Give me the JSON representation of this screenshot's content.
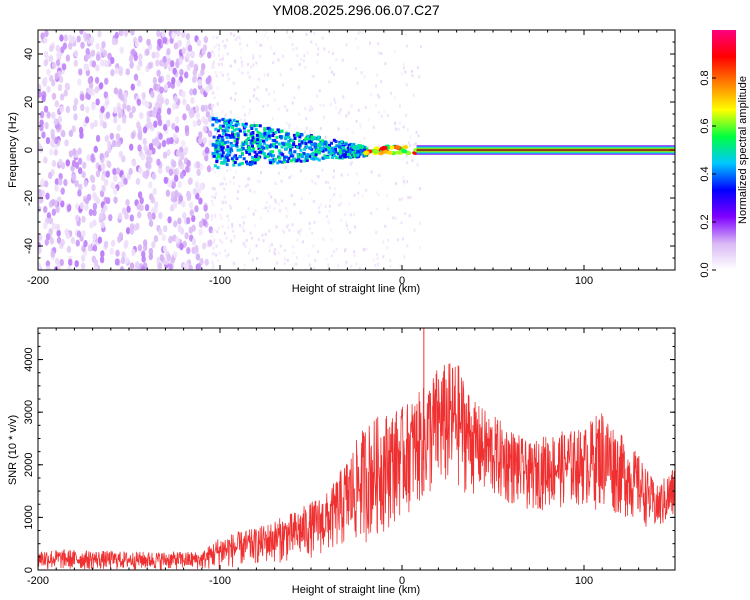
{
  "chart_data": [
    {
      "type": "heatmap",
      "title": "YM08.2025.296.06.07.C27",
      "xlabel": "Height of straight line (km)",
      "ylabel": "Frequency (Hz)",
      "xlim": [
        -200,
        150
      ],
      "ylim": [
        -50,
        50
      ],
      "xticks": [
        -200,
        -100,
        0,
        100
      ],
      "xtick_labels": [
        "-200",
        "-100",
        "0",
        "100"
      ],
      "yticks": [
        -40,
        -20,
        0,
        20,
        40
      ],
      "ytick_labels": [
        "-40",
        "-20",
        "0",
        "20",
        "40"
      ],
      "colorbar": {
        "label": "Normalized spectral amplitude",
        "range": [
          0,
          1
        ],
        "ticks": [
          0.0,
          0.2,
          0.4,
          0.6,
          0.8
        ],
        "tick_labels": [
          "0.0",
          "0.2",
          "0.4",
          "0.6",
          "0.8"
        ],
        "colors": [
          "#ffffff",
          "#d9b8f5",
          "#7f00ff",
          "#0000ff",
          "#00c8ff",
          "#00ff40",
          "#ffff00",
          "#ff8000",
          "#ff0000",
          "#ff0080"
        ]
      },
      "regions": [
        {
          "name": "noise-band",
          "x_range": [
            -200,
            -105
          ],
          "freq_range": [
            -50,
            50
          ],
          "amplitude": 0.12
        },
        {
          "name": "sparse-noise",
          "x_range": [
            -105,
            10
          ],
          "freq_range": [
            -50,
            50
          ],
          "amplitude": 0.04
        },
        {
          "name": "signal-cluster",
          "x_range": [
            -105,
            -20
          ],
          "freq_range": [
            -8,
            15
          ],
          "amplitude": 0.3
        },
        {
          "name": "signal-line",
          "x_range": [
            0,
            150
          ],
          "freq_center": 0,
          "freq_halfwidth": 2,
          "amplitude": 0.95
        }
      ]
    },
    {
      "type": "line",
      "title": "",
      "xlabel": "Height of straight line (km)",
      "ylabel": "SNR (10 * v/v)",
      "xlim": [
        -200,
        150
      ],
      "ylim": [
        0,
        4600
      ],
      "xticks": [
        -200,
        -100,
        0,
        100
      ],
      "xtick_labels": [
        "-200",
        "-100",
        "0",
        "100"
      ],
      "yticks": [
        0,
        1000,
        2000,
        3000,
        4000
      ],
      "ytick_labels": [
        "0",
        "1000",
        "2000",
        "3000",
        "4000"
      ],
      "color": "#f03030",
      "envelope": {
        "x": [
          -200,
          -150,
          -110,
          -100,
          -80,
          -60,
          -40,
          -20,
          -10,
          0,
          10,
          20,
          30,
          40,
          60,
          70,
          80,
          100,
          110,
          120,
          130,
          140,
          150
        ],
        "lower": [
          0,
          0,
          0,
          0,
          100,
          150,
          300,
          500,
          700,
          1000,
          1200,
          1400,
          1500,
          1400,
          1200,
          1100,
          1150,
          1200,
          1100,
          1000,
          900,
          700,
          900
        ],
        "upper": [
          400,
          350,
          350,
          650,
          800,
          1100,
          1500,
          2800,
          3000,
          3100,
          3400,
          3900,
          4000,
          3200,
          2700,
          2400,
          2600,
          2700,
          3100,
          2600,
          2200,
          1600,
          2000
        ]
      },
      "peak": {
        "x": 12,
        "y": 4600
      }
    }
  ]
}
